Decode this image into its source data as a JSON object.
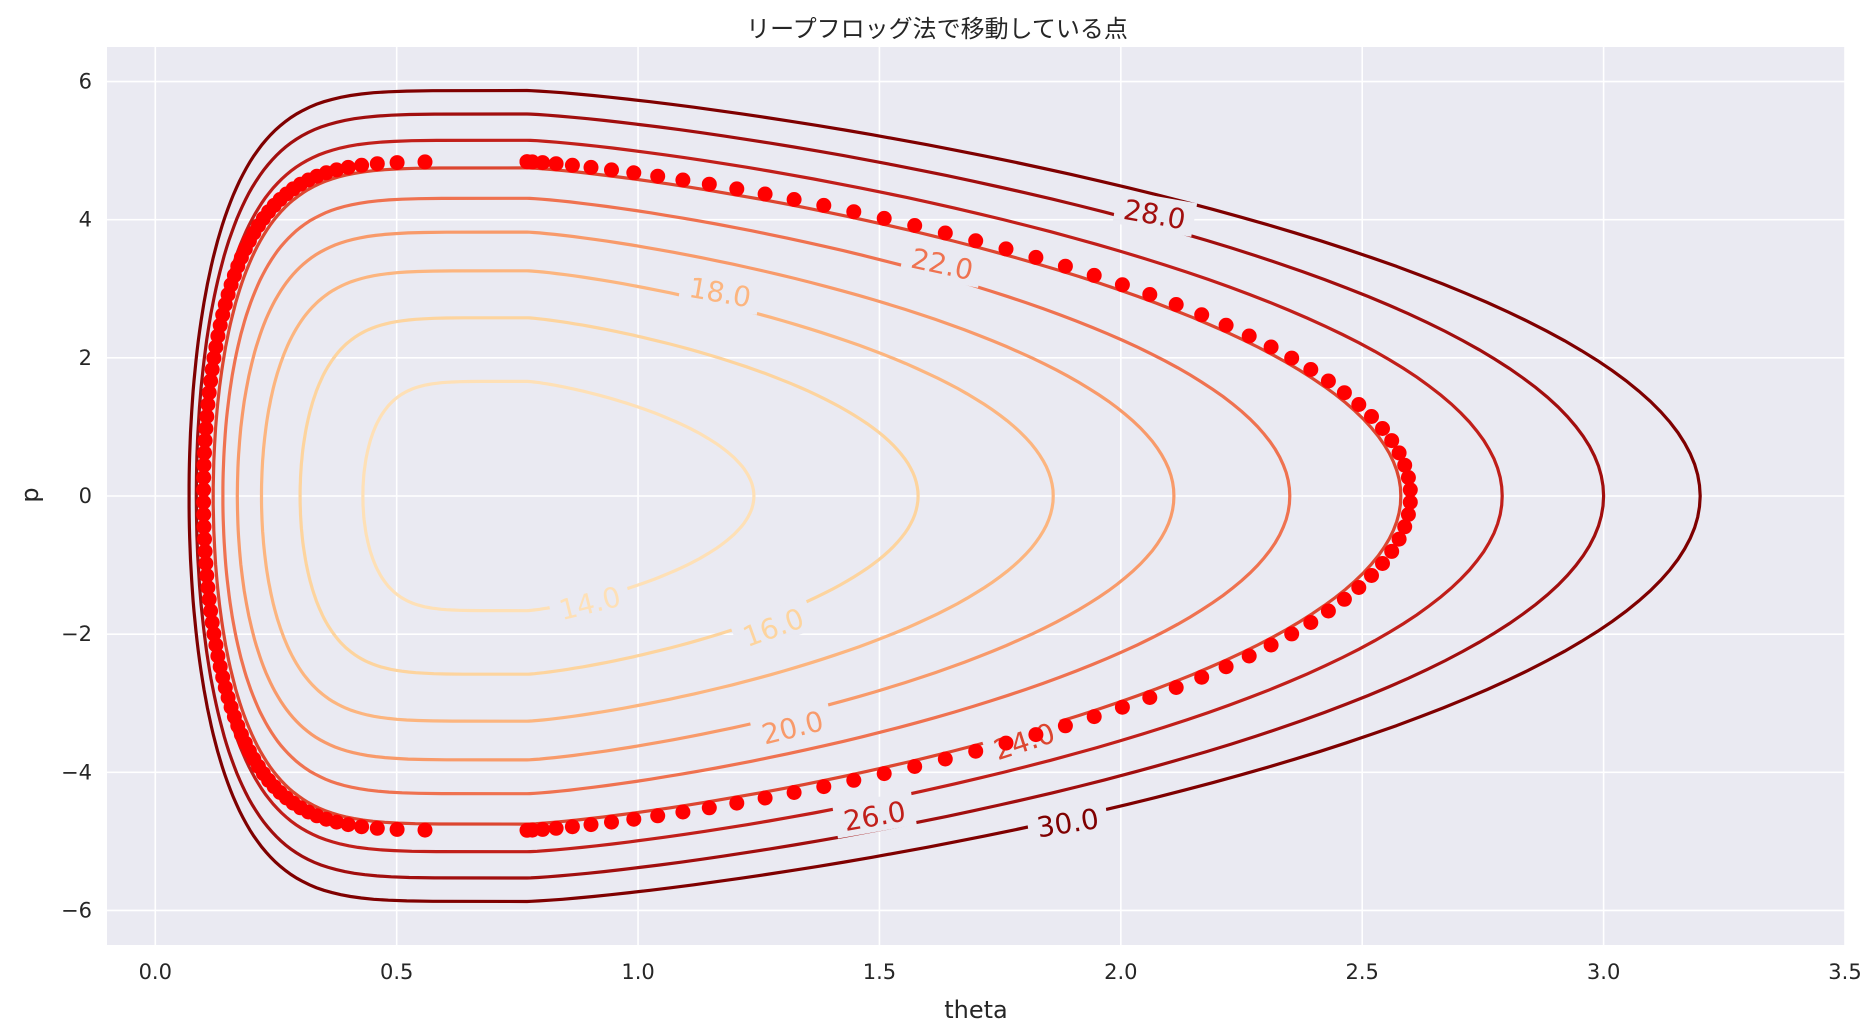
{
  "chart_data": {
    "type": "contour",
    "title": "リープフロッグ法で移動している点",
    "xlabel": "theta",
    "ylabel": "p",
    "xlim": [
      -0.1,
      3.5
    ],
    "ylim": [
      -6.5,
      6.5
    ],
    "xticks": [
      0.0,
      0.5,
      1.0,
      1.5,
      2.0,
      2.5,
      3.0,
      3.5
    ],
    "xtick_labels": [
      "0.0",
      "0.5",
      "1.0",
      "1.5",
      "2.0",
      "2.5",
      "3.0",
      "3.5"
    ],
    "yticks": [
      -6,
      -4,
      -2,
      0,
      2,
      4,
      6
    ],
    "ytick_labels": [
      "−6",
      "−4",
      "−2",
      "0",
      "2",
      "4",
      "6"
    ],
    "grid": true,
    "background": "#eaeaf2",
    "colormap": "OrRd",
    "contours": [
      {
        "level": 14.0,
        "label": "14.0",
        "color": "#fee0b6",
        "theta_min": 0.43,
        "theta_max": 1.24,
        "p_peak": 1.66
      },
      {
        "level": 16.0,
        "label": "16.0",
        "color": "#fdd49e",
        "theta_min": 0.3,
        "theta_max": 1.58,
        "p_peak": 2.58
      },
      {
        "level": 18.0,
        "label": "18.0",
        "color": "#fcb57f",
        "theta_min": 0.22,
        "theta_max": 1.86,
        "p_peak": 3.26
      },
      {
        "level": 20.0,
        "label": "20.0",
        "color": "#f89a6a",
        "theta_min": 0.17,
        "theta_max": 2.11,
        "p_peak": 3.82
      },
      {
        "level": 22.0,
        "label": "22.0",
        "color": "#ef7250",
        "theta_min": 0.14,
        "theta_max": 2.35,
        "p_peak": 4.31
      },
      {
        "level": 24.0,
        "label": "24.0",
        "color": "#dc4630",
        "theta_min": 0.12,
        "theta_max": 2.58,
        "p_peak": 4.75
      },
      {
        "level": 26.0,
        "label": "26.0",
        "color": "#c11f1a",
        "theta_min": 0.1,
        "theta_max": 2.79,
        "p_peak": 5.15
      },
      {
        "level": 28.0,
        "label": "28.0",
        "color": "#a10e0e",
        "theta_min": 0.085,
        "theta_max": 3.0,
        "p_peak": 5.53
      },
      {
        "level": 30.0,
        "label": "30.0",
        "color": "#7f0000",
        "theta_min": 0.07,
        "theta_max": 3.2,
        "p_peak": 5.87
      }
    ],
    "series": [
      {
        "type": "scatter",
        "color": "#ff0000",
        "theta_min": 0.1,
        "theta_max": 2.6,
        "p_peak": 4.84,
        "count": 170
      }
    ]
  }
}
